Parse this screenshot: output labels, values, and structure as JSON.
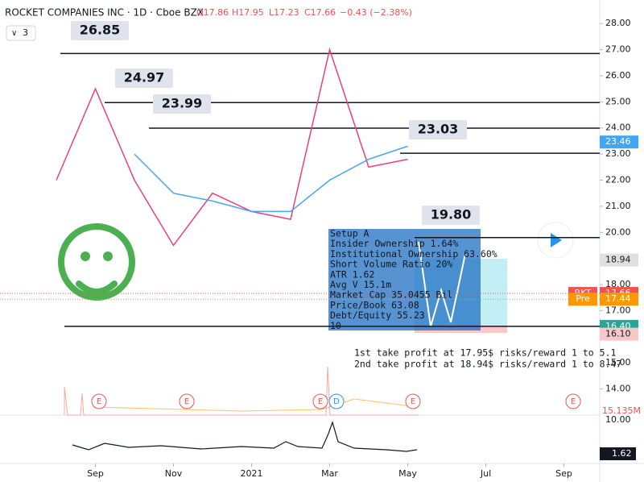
{
  "header": {
    "title": "ROCKET COMPANIES INC · 1D · Cboe BZX",
    "quote": [
      "O17.86",
      "H17.95",
      "L17.23",
      "C17.66",
      "−0.43 (−2.38%)"
    ],
    "indicator_count": "3"
  },
  "chart_data": {
    "type": "line",
    "x": [
      "2020-08",
      "2020-09",
      "2020-10",
      "2020-11",
      "2020-12",
      "2021-01",
      "2021-02",
      "2021-03",
      "2021-04",
      "2021-05"
    ],
    "series": [
      {
        "name": "Price",
        "color": "#ec407a",
        "values": [
          22,
          25.5,
          22,
          19.5,
          21.5,
          20.8,
          20.5,
          27,
          22.5,
          22.8
        ]
      },
      {
        "name": "MA",
        "color": "#42a5f5",
        "values": [
          null,
          null,
          23.0,
          21.5,
          21.2,
          20.8,
          20.8,
          22.0,
          22.8,
          23.3
        ]
      }
    ],
    "xlim": [
      "2020-08",
      "2021-10"
    ],
    "xticks": [
      {
        "value": "2020-09",
        "label": "Sep"
      },
      {
        "value": "2020-11",
        "label": "Nov"
      },
      {
        "value": "2021-01",
        "label": "2021"
      },
      {
        "value": "2021-03",
        "label": "Mar"
      },
      {
        "value": "2021-05",
        "label": "May"
      },
      {
        "value": "2021-07",
        "label": "Jul"
      },
      {
        "value": "2021-09",
        "label": "Sep"
      }
    ],
    "ylim": [
      13,
      28.9
    ],
    "yticks": [
      {
        "value": 14,
        "label": "14.00"
      },
      {
        "value": 15,
        "label": "15.00"
      },
      {
        "value": 16,
        "label": "16.00"
      },
      {
        "value": 17,
        "label": "17.00"
      },
      {
        "value": 18,
        "label": "18.00"
      },
      {
        "value": 19,
        "label": "19.00"
      },
      {
        "value": 20,
        "label": "20.00"
      },
      {
        "value": 21,
        "label": "21.00"
      },
      {
        "value": 22,
        "label": "22.00"
      },
      {
        "value": 23,
        "label": "23.00"
      },
      {
        "value": 24,
        "label": "24.00"
      },
      {
        "value": 25,
        "label": "25.00"
      },
      {
        "value": 26,
        "label": "26.00"
      },
      {
        "value": 27,
        "label": "27.00"
      },
      {
        "value": 28,
        "label": "28.00"
      }
    ],
    "levels": [
      26.85,
      24.97,
      23.99,
      23.03,
      19.8
    ],
    "level_labels": [
      "26.85",
      "24.97",
      "23.99",
      "23.03",
      "19.80"
    ],
    "axis_tags": [
      {
        "value": 23.46,
        "label": "23.46",
        "color": "#42a5f5"
      },
      {
        "value": 18.94,
        "label": "18.94",
        "color": "#e0e0e0"
      },
      {
        "value": 17.66,
        "label": "17.66",
        "color": "#ef5350",
        "name": "RKT"
      },
      {
        "value": 17.44,
        "label": "17.44",
        "color": "#ff9800",
        "name": "Pre"
      },
      {
        "value": 16.4,
        "label": "16.40",
        "color": "#26a69a"
      },
      {
        "value": 16.1,
        "label": "16.10",
        "color": "#f8c8c8"
      }
    ],
    "volume_label": "15.135M",
    "markers": [
      "E",
      "E",
      "E",
      "D",
      "E",
      "E"
    ]
  },
  "indicator": {
    "scale_label": "10.00",
    "value": "1.62"
  },
  "annotation": [
    "Setup A",
    "Insider Ownership 1.64%",
    "Institutional Ownership 63.60%",
    "Short Volume Ratio 20%",
    "ATR 1.62",
    "Avg V 15.1m",
    "Market Cap 35.0455 Bil",
    "Price/Book 63.08",
    "Debt/Equity 55.23",
    "10"
  ],
  "notes": [
    "1st take profit at 17.95$ risks/reward 1 to 5.1",
    "2nd take profit at 18.94$ risks/reward 1 to 8.47"
  ]
}
